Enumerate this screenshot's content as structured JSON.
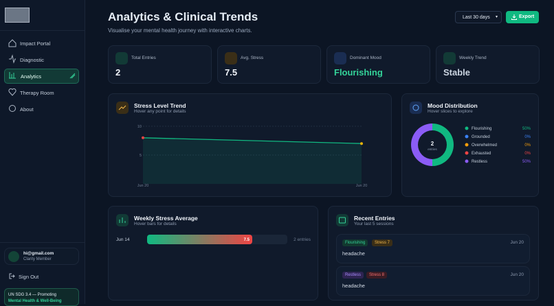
{
  "sidebar": {
    "nav": [
      "Impact Portal",
      "Diagnostic",
      "Analytics",
      "Therapy Room",
      "About"
    ],
    "user": {
      "email": "hi@gmail.com",
      "role": "Clarity Member"
    },
    "sign_out": "Sign Out",
    "footer": [
      "UN SDG 3.4 — Promoting",
      "Mental Health & Well-Being"
    ]
  },
  "header": {
    "title": "Analytics & Clinical Trends",
    "subtitle": "Visualise your mental health journey with interactive charts.",
    "range": "Last 30 days",
    "export": "Export"
  },
  "stats": [
    {
      "label": "Total Entries",
      "value": 2
    },
    {
      "label": "Avg. Stress",
      "value": 7.5
    },
    {
      "label": "Dominant Mood",
      "value": "Flourishing"
    },
    {
      "label": "Weekly Trend",
      "value": "Stable"
    }
  ],
  "stress": {
    "title": "Stress Level Trend",
    "subtitle": "Hover any point for details",
    "chart": {
      "type": "line",
      "categories": [
        "Jun 20",
        "Jun 20"
      ],
      "values": [
        8,
        7
      ],
      "point_colors": [
        "#ef4444",
        "#eab308"
      ],
      "color": "#10b981",
      "ylim": [
        0,
        10
      ],
      "yticks": [
        5,
        10
      ]
    }
  },
  "mood": {
    "title": "Mood Distribution",
    "subtitle": "Hover slices to explore",
    "chart": {
      "type": "pie",
      "center_value": 2,
      "center_label": "entries",
      "categories": [
        "Flourishing",
        "Grounded",
        "Overwhelmed",
        "Exhausted",
        "Restless"
      ],
      "values": [
        50,
        0,
        0,
        0,
        50
      ],
      "value_labels": [
        "50%",
        "0%",
        "0%",
        "0%",
        "50%"
      ],
      "colors": [
        "#10b981",
        "#3b82f6",
        "#f59e0b",
        "#ef4444",
        "#8b5cf6"
      ]
    }
  },
  "weekly": {
    "title": "Weekly Stress Average",
    "subtitle": "Hover bars for details",
    "chart": {
      "type": "bar",
      "categories": [
        "Jun 14"
      ],
      "values": [
        7.5
      ],
      "notes": [
        "2 entries"
      ],
      "xlim": [
        0,
        10
      ]
    }
  },
  "recent": {
    "title": "Recent Entries",
    "subtitle": "Your last 5 sessions",
    "entries": [
      {
        "mood": "Flourishing",
        "stress": "Stress 7",
        "date": "Jun 20",
        "note": "headache"
      },
      {
        "mood": "Restless",
        "stress": "Stress 8",
        "date": "Jun 20",
        "note": "headache"
      }
    ]
  }
}
